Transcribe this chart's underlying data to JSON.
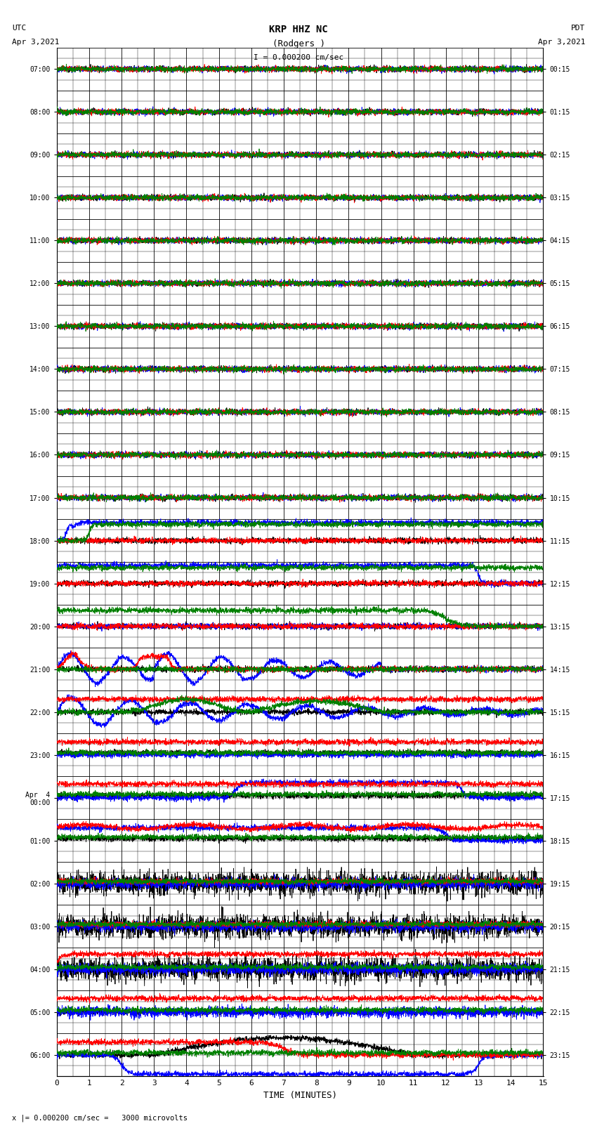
{
  "title_line1": "KRP HHZ NC",
  "title_line2": "(Rodgers )",
  "scale_label": "I = 0.000200 cm/sec",
  "left_label": "UTC",
  "left_date": "Apr 3,2021",
  "right_label": "PDT",
  "right_date": "Apr 3,2021",
  "xlabel": "TIME (MINUTES)",
  "footer_label": "x |= 0.000200 cm/sec =   3000 microvolts",
  "xlim": [
    0,
    15
  ],
  "background_color": "#ffffff",
  "grid_color": "#000000",
  "grid_minor_color": "#888888",
  "utc_times": [
    "07:00",
    "08:00",
    "09:00",
    "10:00",
    "11:00",
    "12:00",
    "13:00",
    "14:00",
    "15:00",
    "16:00",
    "17:00",
    "18:00",
    "19:00",
    "20:00",
    "21:00",
    "22:00",
    "23:00",
    "Apr  4\n00:00",
    "01:00",
    "02:00",
    "03:00",
    "04:00",
    "05:00",
    "06:00"
  ],
  "pdt_times": [
    "00:15",
    "01:15",
    "02:15",
    "03:15",
    "04:15",
    "05:15",
    "06:15",
    "07:15",
    "08:15",
    "09:15",
    "10:15",
    "11:15",
    "12:15",
    "13:15",
    "14:15",
    "15:15",
    "16:15",
    "17:15",
    "18:15",
    "19:15",
    "20:15",
    "21:15",
    "22:15",
    "23:15"
  ],
  "n_hours": 24,
  "sub_rows": 4,
  "colors": [
    "black",
    "blue",
    "red",
    "green"
  ],
  "figsize": [
    8.5,
    16.13
  ],
  "dpi": 100
}
